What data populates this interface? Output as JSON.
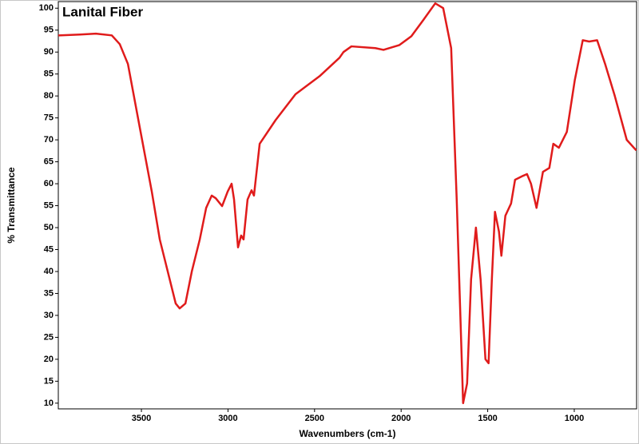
{
  "chart_data": {
    "type": "line",
    "title": "Lanital Fiber",
    "x_label": "Wavenumbers (cm-1)",
    "y_label": "% Transmittance",
    "x": [
      3980,
      3855,
      3763,
      3671,
      3625,
      3578,
      3509,
      3440,
      3394,
      3348,
      3302,
      3279,
      3246,
      3209,
      3163,
      3126,
      3094,
      3071,
      3034,
      3002,
      2979,
      2965,
      2942,
      2924,
      2910,
      2887,
      2864,
      2850,
      2817,
      2725,
      2610,
      2471,
      2356,
      2333,
      2287,
      2149,
      2102,
      2010,
      1941,
      1872,
      1803,
      1757,
      1711,
      1679,
      1642,
      1619,
      1596,
      1568,
      1541,
      1513,
      1495,
      1476,
      1458,
      1435,
      1421,
      1398,
      1365,
      1342,
      1296,
      1273,
      1250,
      1218,
      1181,
      1144,
      1121,
      1089,
      1043,
      997,
      951,
      914,
      868,
      822,
      766,
      697,
      642
    ],
    "series": [
      {
        "name": "Lanital Fiber",
        "color": "#e01b1b",
        "values": [
          93.8,
          94,
          94.2,
          93.8,
          91.8,
          87.3,
          72.7,
          58.2,
          47.3,
          40,
          32.7,
          31.6,
          32.7,
          40,
          47.3,
          54.5,
          57.3,
          56.7,
          54.9,
          58.2,
          60,
          56.4,
          45.5,
          48.2,
          47.3,
          56.4,
          58.5,
          57.3,
          69.1,
          74.5,
          80.4,
          84.5,
          88.7,
          90,
          91.3,
          90.9,
          90.5,
          91.6,
          93.6,
          97.3,
          101.1,
          100,
          90.9,
          56.4,
          10,
          14.5,
          38.2,
          50,
          38.2,
          20,
          19.1,
          38.2,
          53.6,
          49.1,
          43.6,
          52.7,
          55.5,
          60.9,
          61.8,
          62.2,
          60,
          54.5,
          62.7,
          63.6,
          69.1,
          68.2,
          71.8,
          83.6,
          92.7,
          92.4,
          92.7,
          87.3,
          80,
          70,
          67.6
        ]
      }
    ],
    "xlim": [
      3980,
      640
    ],
    "xticks": [
      3500,
      3000,
      2500,
      2000,
      1500,
      1000
    ],
    "ylim": [
      8.7,
      101.5
    ],
    "yticks": [
      10,
      15,
      20,
      25,
      30,
      35,
      40,
      45,
      50,
      55,
      60,
      65,
      70,
      75,
      80,
      85,
      90,
      95,
      100
    ],
    "grid": false
  }
}
